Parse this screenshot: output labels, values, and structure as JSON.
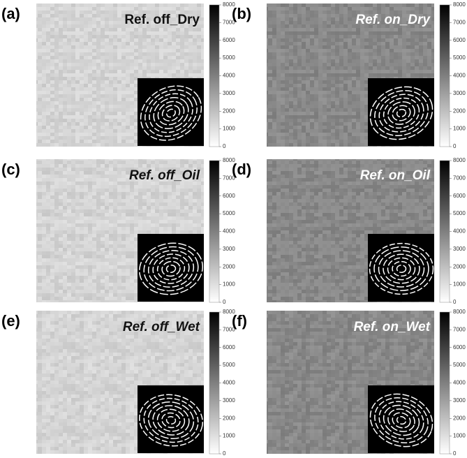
{
  "panels": [
    {
      "label": "(a)",
      "title": "Ref. off_Dry"
    },
    {
      "label": "(b)",
      "title": "Ref. on_Dry"
    },
    {
      "label": "(c)",
      "title": "Ref. off_Oil"
    },
    {
      "label": "(d)",
      "title": "Ref. on_Oil"
    },
    {
      "label": "(e)",
      "title": "Ref. off_Wet"
    },
    {
      "label": "(f)",
      "title": "Ref. on_Wet"
    }
  ],
  "colorbar": {
    "range": [
      0,
      8000
    ],
    "ticks": [
      0,
      1000,
      2000,
      3000,
      4000,
      5000,
      6000,
      7000,
      8000
    ]
  }
}
